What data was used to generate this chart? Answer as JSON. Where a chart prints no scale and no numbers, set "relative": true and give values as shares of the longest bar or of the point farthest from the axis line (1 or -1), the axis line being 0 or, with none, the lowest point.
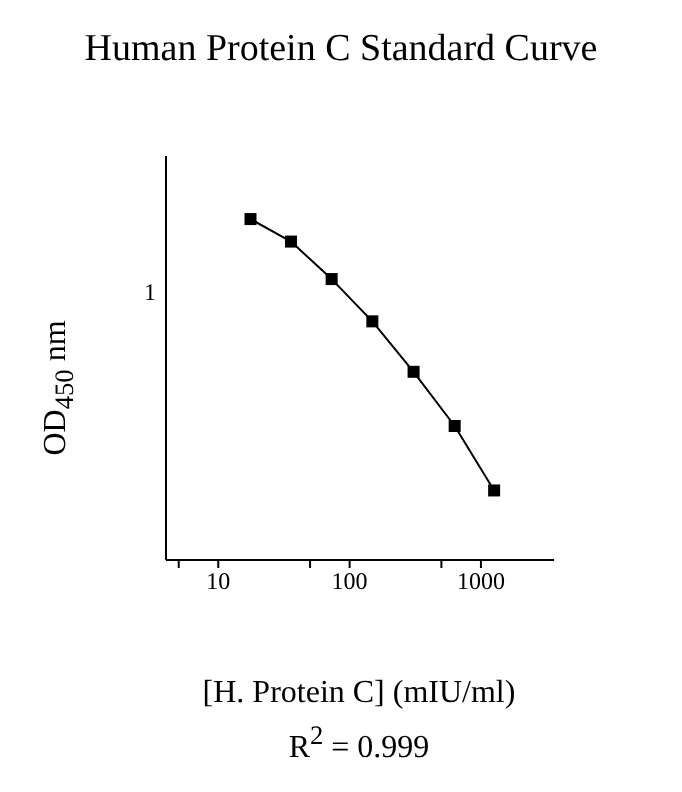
{
  "chart_data": {
    "type": "line",
    "title": "Human Protein C Standard Curve",
    "xlabel": "[H. Protein C] (mIU/ml)",
    "ylabel": "OD$_{450}$ nm",
    "annotations": [
      "R$^{2}$ = 0.999",
      "1"
    ],
    "x": [
      17.6,
      35.8,
      73,
      149,
      307,
      631,
      1260
    ],
    "series": [
      {
        "color": "#000000",
        "values": [
          1,
          0.934,
          0.824,
          0.7,
          0.552,
          0.393,
          0.204
        ]
      }
    ],
    "relative": true,
    "log": "x",
    "xlim": [
      4,
      3600
    ],
    "xticks": [
      {
        "value": 5,
        "label": null
      },
      10,
      {
        "value": 50,
        "label": null
      },
      100,
      {
        "value": 500,
        "label": null
      },
      1000
    ],
    "marker": "square",
    "line_style": "solid",
    "grid": false,
    "legend": false
  }
}
